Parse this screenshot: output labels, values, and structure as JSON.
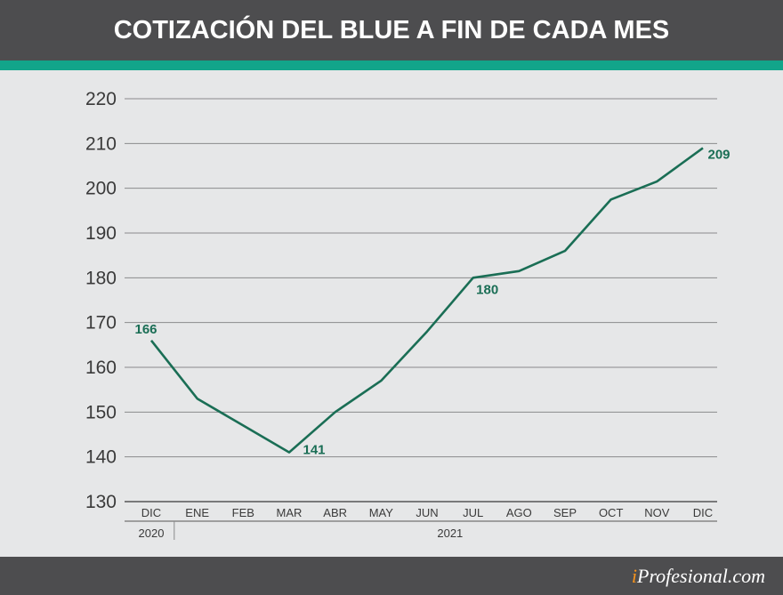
{
  "header": {
    "title": "COTIZACIÓN DEL BLUE A FIN DE CADA MES"
  },
  "brand": {
    "prefix": "i",
    "name": "Profesional.com"
  },
  "colors": {
    "header_bg": "#4d4d4f",
    "accent": "#12a58a",
    "line": "#1a6e55",
    "background": "#e6e7e8"
  },
  "chart_data": {
    "type": "line",
    "title": "COTIZACIÓN DEL BLUE A FIN DE CADA MES",
    "categories": [
      "DIC",
      "ENE",
      "FEB",
      "MAR",
      "ABR",
      "MAY",
      "JUN",
      "JUL",
      "AGO",
      "SEP",
      "OCT",
      "NOV",
      "DIC"
    ],
    "year_groups": [
      {
        "label": "2020",
        "span": 1
      },
      {
        "label": "2021",
        "span": 12
      }
    ],
    "series": [
      {
        "values": [
          166,
          153,
          147,
          141,
          150,
          157,
          168,
          180,
          181.5,
          186,
          197.5,
          201.5,
          209
        ]
      }
    ],
    "annotations": [
      {
        "index": 0,
        "text": "166"
      },
      {
        "index": 3,
        "text": "141"
      },
      {
        "index": 7,
        "text": "180"
      },
      {
        "index": 12,
        "text": "209"
      }
    ],
    "yticks": [
      130,
      140,
      150,
      160,
      170,
      180,
      190,
      200,
      210,
      220
    ],
    "ylim": [
      130,
      220
    ],
    "grid": true
  }
}
